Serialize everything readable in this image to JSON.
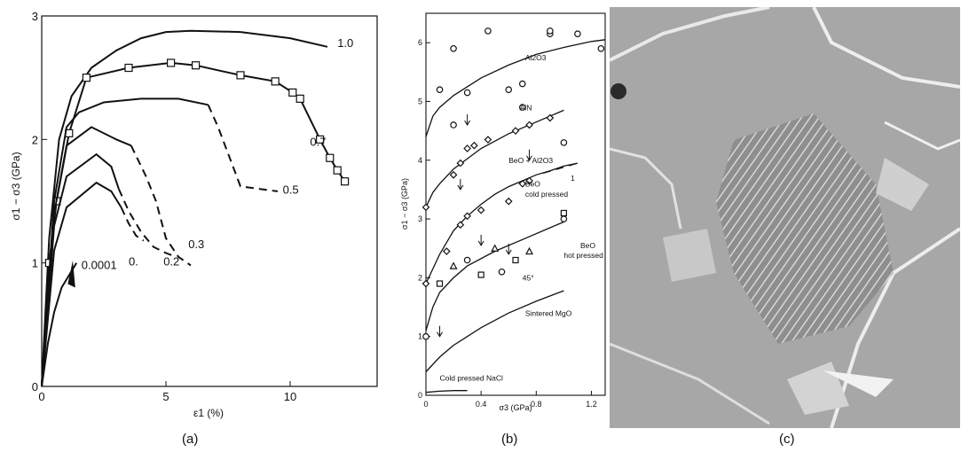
{
  "captions": [
    "(a)",
    "(b)",
    "(c)"
  ],
  "chart_data": [
    {
      "type": "line",
      "title": "",
      "xlabel": "ε1 (%)",
      "ylabel": "σ1 − σ3 (GPa)",
      "xlim": [
        0,
        13.5
      ],
      "ylim": [
        0,
        3
      ],
      "xticks": [
        "0",
        "5",
        "10"
      ],
      "yticks": [
        "0",
        "1",
        "2",
        "3"
      ],
      "series": [
        {
          "name": "1.0",
          "x": [
            0,
            0.3,
            0.7,
            1.2,
            2,
            3,
            4,
            5,
            6,
            8,
            10,
            11.5
          ],
          "y": [
            0,
            1.2,
            2.0,
            2.35,
            2.58,
            2.72,
            2.82,
            2.87,
            2.88,
            2.87,
            2.82,
            2.75
          ]
        },
        {
          "name": "0.7",
          "x": [
            0,
            0.3,
            0.6,
            1.1,
            1.8,
            3.5,
            5.2,
            6.2,
            8.0,
            9.4,
            10.1,
            10.4,
            11.2,
            11.6,
            11.9,
            12.2
          ],
          "y": [
            0,
            1.0,
            1.5,
            2.05,
            2.5,
            2.58,
            2.62,
            2.6,
            2.52,
            2.47,
            2.38,
            2.33,
            2.0,
            1.85,
            1.75,
            1.66
          ]
        },
        {
          "name": "0.5",
          "x": [
            0,
            0.5,
            1.0,
            1.5,
            2.5,
            4.0,
            5.5,
            6.7,
            7.1,
            8.0,
            9.5
          ],
          "y": [
            0,
            1.5,
            2.1,
            2.22,
            2.3,
            2.33,
            2.33,
            2.28,
            2.1,
            1.62,
            1.58
          ]
        },
        {
          "name": "0.3",
          "x": [
            0,
            0.5,
            1.0,
            2.0,
            3.0,
            3.6,
            4.2,
            4.6,
            5.0,
            5.5,
            6.0
          ],
          "y": [
            0,
            1.4,
            1.95,
            2.1,
            2.0,
            1.95,
            1.7,
            1.5,
            1.2,
            1.05,
            0.98
          ]
        },
        {
          "name": "0.2",
          "x": [
            0,
            0.5,
            1.0,
            2.2,
            2.8,
            3.1,
            3.5,
            4.0,
            4.5,
            5.0,
            5.4
          ],
          "y": [
            0,
            1.3,
            1.7,
            1.88,
            1.78,
            1.6,
            1.42,
            1.25,
            1.13,
            1.08,
            1.05
          ]
        },
        {
          "name": "0.",
          "x": [
            0,
            0.5,
            1.0,
            2.2,
            2.8,
            3.2,
            3.5,
            3.8,
            4.1
          ],
          "y": [
            0,
            1.1,
            1.45,
            1.65,
            1.58,
            1.45,
            1.32,
            1.22,
            1.18
          ]
        },
        {
          "name": "0.0001",
          "x": [
            0,
            0.25,
            0.5,
            0.8,
            1.1,
            1.4
          ],
          "y": [
            0,
            0.35,
            0.6,
            0.8,
            0.9,
            1.0
          ]
        }
      ]
    },
    {
      "type": "scatter",
      "title": "",
      "xlabel": "σ3 (GPa)",
      "ylabel": "σ1 − σ3 (GPa)",
      "xlim": [
        0,
        1.3
      ],
      "ylim": [
        0,
        6.5
      ],
      "xticks": [
        "0",
        "0.4",
        "0.8",
        "1.2"
      ],
      "yticks": [
        "0",
        "1",
        "2",
        "3",
        "4",
        "5",
        "6"
      ],
      "annotations": [
        "Al2O3",
        "AlN",
        "BeO + Al2O3",
        "BeO",
        "cold pressed",
        "1",
        "BeO",
        "hot pressed",
        "45°",
        "Sintered MgO",
        "Cold pressed NaCl"
      ],
      "series": [
        {
          "name": "Al2O3",
          "curve_x": [
            0,
            0.05,
            0.1,
            0.2,
            0.4,
            0.6,
            0.8,
            1.0,
            1.2,
            1.3
          ],
          "curve_y": [
            4.4,
            4.75,
            4.9,
            5.1,
            5.4,
            5.62,
            5.8,
            5.92,
            6.02,
            6.05
          ],
          "points_x": [
            0.1,
            0.2,
            0.2,
            0.3,
            0.45,
            0.6,
            0.7,
            0.7,
            0.9,
            0.9,
            1.0,
            1.1,
            1.27
          ],
          "points_y": [
            5.2,
            5.9,
            4.6,
            5.15,
            6.2,
            5.2,
            4.9,
            5.3,
            6.15,
            6.2,
            4.3,
            6.15,
            5.9
          ]
        },
        {
          "name": "AlN",
          "curve_x": [
            0,
            0.05,
            0.1,
            0.2,
            0.4,
            0.6,
            0.8,
            1.0
          ],
          "curve_y": [
            3.2,
            3.45,
            3.6,
            3.85,
            4.2,
            4.45,
            4.65,
            4.85
          ],
          "points_x": [
            0,
            0.2,
            0.25,
            0.3,
            0.35,
            0.45,
            0.65,
            0.75,
            0.9
          ],
          "points_y": [
            3.2,
            3.75,
            3.95,
            4.2,
            4.25,
            4.35,
            4.5,
            4.6,
            4.72
          ]
        },
        {
          "name": "BeO + Al2O3",
          "curve_x": [
            0,
            0.1,
            0.2,
            0.3,
            0.4,
            0.5,
            0.6,
            0.7,
            0.8,
            0.9,
            1.0,
            1.1
          ],
          "curve_y": [
            1.9,
            2.4,
            2.8,
            3.05,
            3.25,
            3.42,
            3.55,
            3.65,
            3.75,
            3.82,
            3.9,
            3.95
          ],
          "points_x": [
            0,
            0.15,
            0.25,
            0.3,
            0.4,
            0.6,
            0.7,
            0.75
          ],
          "points_y": [
            1.9,
            2.45,
            2.9,
            3.05,
            3.15,
            3.3,
            3.6,
            3.65
          ]
        },
        {
          "name": "BeO hot pressed",
          "curve_x": [
            0,
            0.05,
            0.1,
            0.2,
            0.3,
            0.5,
            0.7,
            0.9,
            1.0
          ],
          "curve_y": [
            1.1,
            1.5,
            1.75,
            2.0,
            2.2,
            2.45,
            2.65,
            2.85,
            2.95
          ],
          "points_x": [
            0,
            0.1,
            0.2,
            0.3,
            0.4,
            0.5,
            0.55,
            0.65,
            0.75,
            1.0,
            1.0
          ],
          "points_y": [
            1.0,
            1.9,
            2.2,
            2.3,
            2.05,
            2.5,
            2.1,
            2.3,
            2.45,
            3.0,
            3.1
          ]
        },
        {
          "name": "Sintered MgO",
          "curve_x": [
            0,
            0.1,
            0.2,
            0.4,
            0.6,
            0.8,
            1.0
          ],
          "curve_y": [
            0.4,
            0.65,
            0.85,
            1.15,
            1.4,
            1.6,
            1.78
          ]
        },
        {
          "name": "Cold pressed NaCl",
          "curve_x": [
            0,
            0.1,
            0.2,
            0.3
          ],
          "curve_y": [
            0.05,
            0.07,
            0.08,
            0.08
          ]
        }
      ]
    }
  ]
}
